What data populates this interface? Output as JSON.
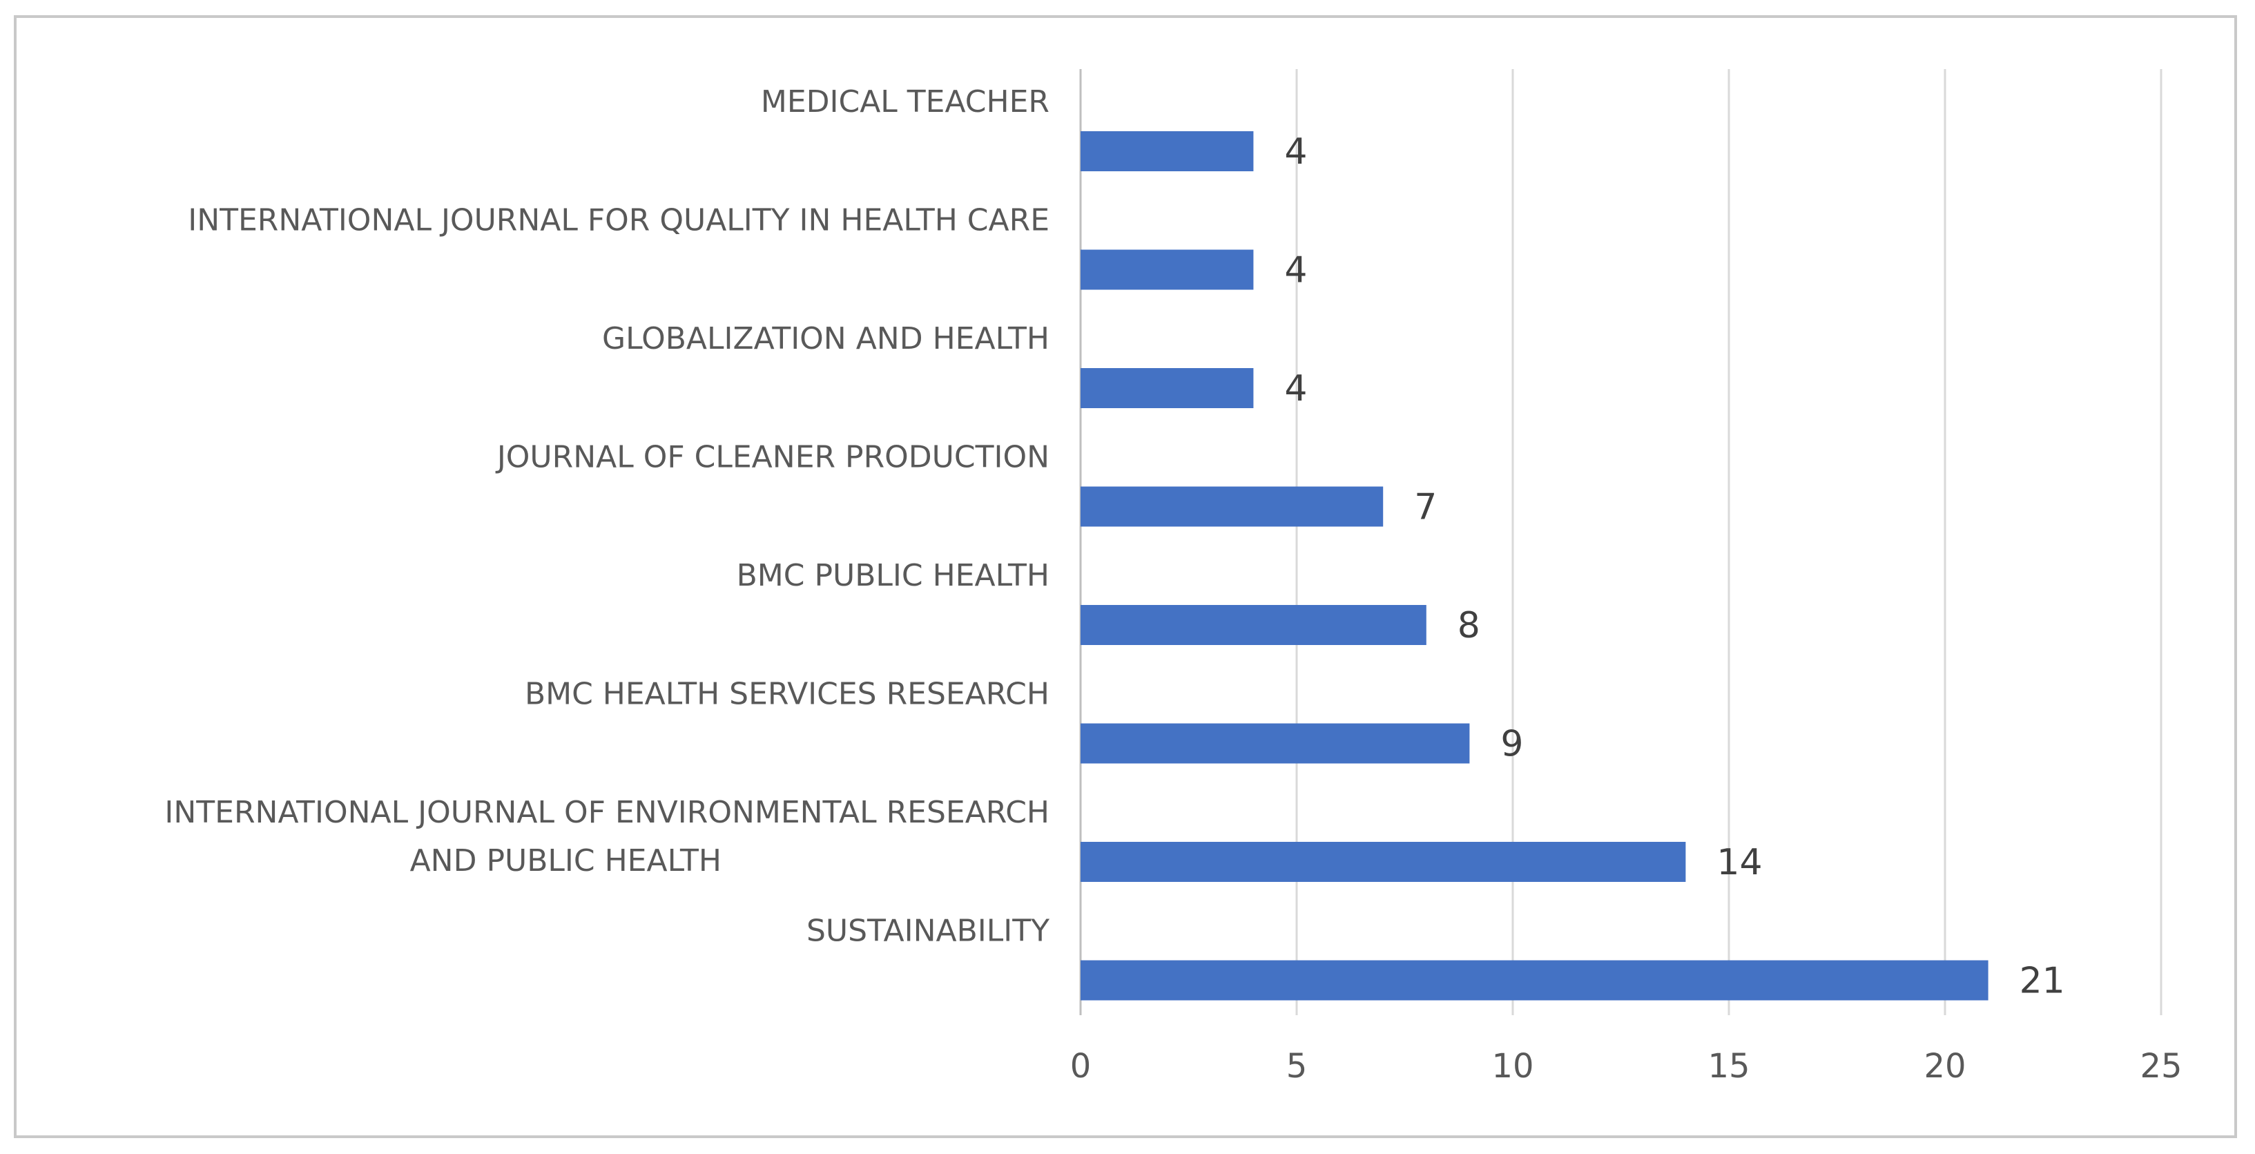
{
  "chart_data": {
    "type": "bar",
    "orientation": "horizontal",
    "categories": [
      [
        "MEDICAL TEACHER"
      ],
      [
        "INTERNATIONAL JOURNAL FOR QUALITY IN HEALTH CARE"
      ],
      [
        "GLOBALIZATION AND HEALTH"
      ],
      [
        "JOURNAL OF CLEANER PRODUCTION"
      ],
      [
        "BMC PUBLIC HEALTH"
      ],
      [
        "BMC HEALTH SERVICES RESEARCH"
      ],
      [
        "INTERNATIONAL JOURNAL OF ENVIRONMENTAL RESEARCH",
        "AND PUBLIC HEALTH"
      ],
      [
        "SUSTAINABILITY"
      ]
    ],
    "values": [
      4,
      4,
      4,
      7,
      8,
      9,
      14,
      21
    ],
    "xlim": [
      0,
      25
    ],
    "xticks": [
      "0",
      "5",
      "10",
      "15",
      "20",
      "25"
    ],
    "title": "",
    "xlabel": "",
    "ylabel": "",
    "grid": "vertical",
    "legend": "none",
    "bar_color": "#4472c4",
    "data_labels": [
      "4",
      "4",
      "4",
      "7",
      "8",
      "9",
      "14",
      "21"
    ]
  }
}
